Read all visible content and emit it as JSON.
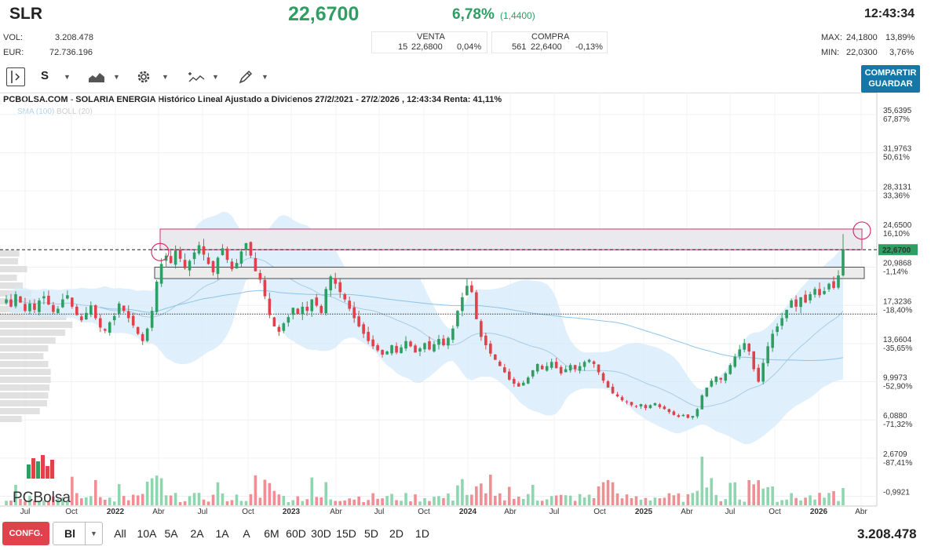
{
  "header": {
    "ticker": "SLR",
    "price": "22,6700",
    "change_pct": "6,78%",
    "change_abs": "(1,4400)",
    "time": "12:43:34",
    "vol_label": "VOL:",
    "vol_value": "3.208.478",
    "eur_label": "EUR:",
    "eur_value": "72.736.196",
    "venta_label": "VENTA",
    "venta_qty": "15",
    "venta_price": "22,6800",
    "venta_pct": "0,04%",
    "compra_label": "COMPRA",
    "compra_qty": "561",
    "compra_price": "22,6400",
    "compra_pct": "-0,13%",
    "max_label": "MAX:",
    "max_value": "24,1800",
    "max_pct": "13,89%",
    "min_label": "MIN:",
    "min_value": "22,0300",
    "min_pct": "3,76%"
  },
  "toolbar": {
    "period_label": "S",
    "share_line1": "COMPARTIR",
    "share_line2": "GUARDAR"
  },
  "icons": [
    "panel-toggle-icon",
    "area-chart-icon",
    "gear-icon",
    "indicator-icon",
    "pencil-icon"
  ],
  "colors": {
    "up": "#2e9e63",
    "down": "#e0424b",
    "accent": "#1577a7",
    "band": "#d4eaf9"
  },
  "chart_title": "PCBOLSA.COM - SOLARIA ENERGIA Histórico Lineal Ajustado a Dividenos 27/2/2021 - 27/2/2026 , 12:43:34 Renta: 41,11%",
  "legend": {
    "sma": "SMA (100)",
    "boll": "BOLL (20)"
  },
  "logo_text": "PCBolsa",
  "chart_data": {
    "type": "candlestick",
    "title": "SOLARIA ENERGIA Histórico Lineal Ajustado a Dividenos 27/2/2021 - 27/2/2026",
    "y_scale": "log",
    "ylim": [
      -0.9921,
      35.6395
    ],
    "y_ticks": [
      {
        "value": "35,6395",
        "pct": "67,87%"
      },
      {
        "value": "31,9763",
        "pct": "50,61%"
      },
      {
        "value": "28,3131",
        "pct": "33,36%"
      },
      {
        "value": "24,6500",
        "pct": "16,10%"
      },
      {
        "value": "20,9868",
        "pct": "-1,14%"
      },
      {
        "value": "17,3236",
        "pct": "-18,40%"
      },
      {
        "value": "13,6604",
        "pct": "-35,65%"
      },
      {
        "value": "9,9973",
        "pct": "-52,90%"
      },
      {
        "value": "6,0880",
        "pct": "-71,32%"
      },
      {
        "value": "2,6709",
        "pct": "-87,41%"
      },
      {
        "value": "-0,9921",
        "pct": ""
      }
    ],
    "last_price_label": "22,6700",
    "x_ticks": [
      "Jul",
      "Oct",
      "2022",
      "Abr",
      "Jul",
      "Oct",
      "2023",
      "Abr",
      "Jul",
      "Oct",
      "2024",
      "Abr",
      "Jul",
      "Oct",
      "2025",
      "Abr",
      "Jul",
      "Oct",
      "2026",
      "Abr"
    ],
    "weekly_close": [
      17.9,
      17.2,
      18.4,
      17.6,
      16.8,
      17.5,
      16.9,
      17.8,
      18.2,
      17.4,
      16.7,
      17.0,
      17.9,
      18.3,
      17.2,
      16.4,
      15.9,
      16.6,
      17.3,
      16.1,
      15.2,
      14.9,
      15.7,
      16.3,
      17.5,
      16.8,
      16.1,
      15.4,
      14.6,
      13.9,
      15.1,
      16.8,
      19.6,
      21.3,
      22.1,
      21.4,
      22.6,
      21.8,
      20.9,
      21.6,
      22.4,
      23.1,
      22.2,
      21.3,
      20.5,
      21.9,
      22.8,
      21.7,
      20.8,
      21.4,
      22.5,
      23.3,
      22.1,
      20.6,
      19.8,
      18.2,
      16.4,
      15.3,
      14.8,
      15.6,
      16.2,
      17.1,
      16.5,
      17.2,
      16.8,
      17.9,
      17.3,
      16.6,
      18.9,
      20.1,
      19.4,
      18.6,
      17.9,
      17.0,
      16.1,
      15.3,
      14.6,
      13.9,
      13.4,
      13.0,
      12.6,
      12.9,
      13.5,
      12.8,
      13.3,
      13.9,
      13.4,
      12.8,
      13.2,
      13.7,
      13.1,
      13.6,
      14.1,
      13.5,
      14.2,
      15.1,
      16.8,
      18.1,
      19.2,
      18.6,
      16.0,
      14.3,
      13.5,
      12.7,
      12.1,
      11.5,
      10.9,
      10.2,
      9.8,
      9.5,
      9.9,
      10.4,
      11.1,
      11.7,
      11.2,
      11.5,
      11.9,
      11.3,
      10.8,
      11.2,
      11.6,
      11.2,
      11.5,
      11.9,
      12.1,
      11.7,
      10.9,
      10.1,
      9.4,
      8.8,
      8.5,
      8.1,
      7.9,
      7.6,
      7.5,
      7.7,
      7.3,
      7.6,
      7.8,
      7.4,
      7.2,
      6.9,
      6.6,
      6.4,
      6.6,
      6.3,
      6.5,
      7.2,
      8.6,
      9.4,
      10.1,
      10.5,
      10.2,
      10.8,
      11.6,
      12.4,
      13.1,
      13.7,
      12.9,
      11.2,
      10.0,
      11.8,
      13.4,
      14.6,
      15.3,
      16.1,
      16.9,
      17.8,
      17.2,
      18.1,
      17.6,
      18.4,
      18.9,
      18.3,
      18.7,
      19.4,
      19.0,
      20.2,
      22.67
    ],
    "last_values": {
      "price": 22.67,
      "max": 24.18,
      "min": 22.03
    },
    "resistance_zone": [
      22.67,
      24.65
    ],
    "support_zone": [
      19.9,
      20.99
    ],
    "dashed_line": 22.67,
    "dotted_line": 16.5,
    "indicators": [
      "SMA (100)",
      "BOLL (20)"
    ],
    "volume_label": "3.208.478"
  },
  "bottom": {
    "config_label": "CONFG.",
    "type_label": "Bl",
    "ranges": [
      "All",
      "10A",
      "5A",
      "2A",
      "1A",
      "A",
      "6M",
      "60D",
      "30D",
      "15D",
      "5D",
      "2D",
      "1D"
    ],
    "volume": "3.208.478"
  }
}
